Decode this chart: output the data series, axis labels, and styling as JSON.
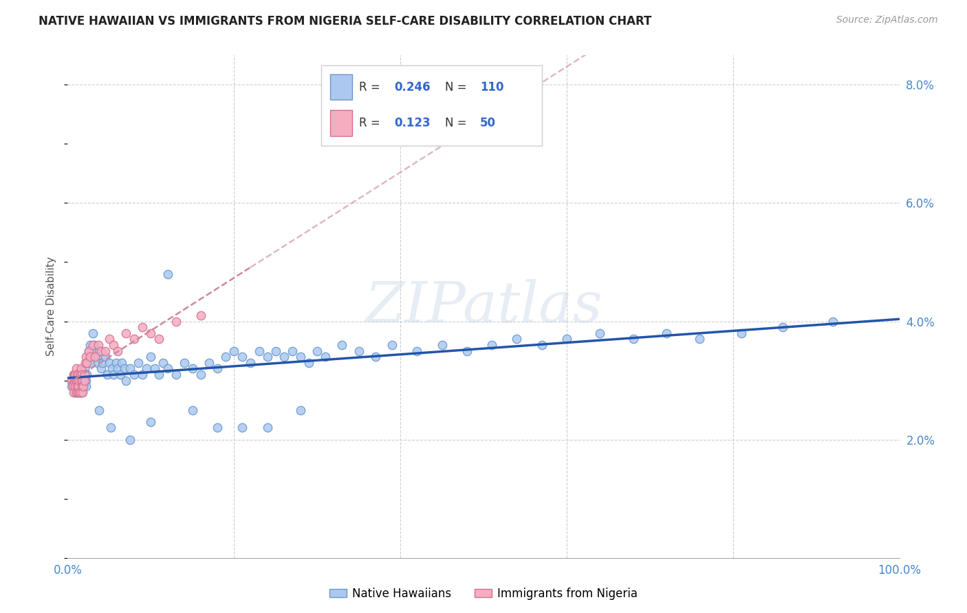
{
  "title": "NATIVE HAWAIIAN VS IMMIGRANTS FROM NIGERIA SELF-CARE DISABILITY CORRELATION CHART",
  "source": "Source: ZipAtlas.com",
  "ylabel": "Self-Care Disability",
  "xlim": [
    0,
    1.0
  ],
  "ylim": [
    0,
    0.085
  ],
  "xticks": [
    0.0,
    0.2,
    0.4,
    0.6,
    0.8,
    1.0
  ],
  "xticklabels": [
    "0.0%",
    "",
    "",
    "",
    "",
    "100.0%"
  ],
  "yticks": [
    0.0,
    0.02,
    0.04,
    0.06,
    0.08
  ],
  "yticklabels": [
    "",
    "2.0%",
    "4.0%",
    "6.0%",
    "8.0%"
  ],
  "hawaiian_color": "#adc8f0",
  "nigeria_color": "#f5adc0",
  "hawaiian_edge": "#6699cc",
  "nigeria_edge": "#d47090",
  "trend_hawaiian_color": "#2255aa",
  "trend_nigeria_color": "#cc8899",
  "R_hawaiian": 0.246,
  "N_hawaiian": 110,
  "R_nigeria": 0.123,
  "N_nigeria": 50,
  "legend_labels": [
    "Native Hawaiians",
    "Immigrants from Nigeria"
  ],
  "watermark": "ZIPatlas",
  "background_color": "#ffffff",
  "grid_color": "#cccccc",
  "hawaiian_x": [
    0.005,
    0.007,
    0.008,
    0.008,
    0.009,
    0.01,
    0.01,
    0.01,
    0.011,
    0.012,
    0.012,
    0.013,
    0.013,
    0.013,
    0.014,
    0.015,
    0.015,
    0.016,
    0.016,
    0.017,
    0.017,
    0.018,
    0.018,
    0.019,
    0.02,
    0.02,
    0.021,
    0.022,
    0.022,
    0.023,
    0.025,
    0.026,
    0.027,
    0.028,
    0.03,
    0.032,
    0.033,
    0.035,
    0.036,
    0.038,
    0.04,
    0.042,
    0.045,
    0.048,
    0.05,
    0.053,
    0.055,
    0.058,
    0.06,
    0.063,
    0.065,
    0.068,
    0.07,
    0.075,
    0.08,
    0.085,
    0.09,
    0.095,
    0.1,
    0.105,
    0.11,
    0.115,
    0.12,
    0.13,
    0.14,
    0.15,
    0.16,
    0.17,
    0.18,
    0.19,
    0.2,
    0.21,
    0.22,
    0.23,
    0.24,
    0.25,
    0.26,
    0.27,
    0.28,
    0.29,
    0.3,
    0.31,
    0.33,
    0.35,
    0.37,
    0.39,
    0.42,
    0.45,
    0.48,
    0.51,
    0.54,
    0.57,
    0.6,
    0.64,
    0.68,
    0.72,
    0.76,
    0.81,
    0.86,
    0.92,
    0.038,
    0.052,
    0.075,
    0.1,
    0.12,
    0.15,
    0.18,
    0.21,
    0.24,
    0.28
  ],
  "hawaiian_y": [
    0.029,
    0.03,
    0.029,
    0.031,
    0.028,
    0.03,
    0.028,
    0.031,
    0.029,
    0.028,
    0.031,
    0.029,
    0.031,
    0.028,
    0.03,
    0.031,
    0.029,
    0.03,
    0.028,
    0.03,
    0.028,
    0.031,
    0.029,
    0.03,
    0.032,
    0.03,
    0.031,
    0.03,
    0.029,
    0.031,
    0.035,
    0.034,
    0.036,
    0.033,
    0.038,
    0.036,
    0.035,
    0.034,
    0.033,
    0.035,
    0.032,
    0.033,
    0.034,
    0.031,
    0.033,
    0.032,
    0.031,
    0.033,
    0.032,
    0.031,
    0.033,
    0.032,
    0.03,
    0.032,
    0.031,
    0.033,
    0.031,
    0.032,
    0.034,
    0.032,
    0.031,
    0.033,
    0.032,
    0.031,
    0.033,
    0.032,
    0.031,
    0.033,
    0.032,
    0.034,
    0.035,
    0.034,
    0.033,
    0.035,
    0.034,
    0.035,
    0.034,
    0.035,
    0.034,
    0.033,
    0.035,
    0.034,
    0.036,
    0.035,
    0.034,
    0.036,
    0.035,
    0.036,
    0.035,
    0.036,
    0.037,
    0.036,
    0.037,
    0.038,
    0.037,
    0.038,
    0.037,
    0.038,
    0.039,
    0.04,
    0.025,
    0.022,
    0.02,
    0.023,
    0.048,
    0.025,
    0.022,
    0.022,
    0.022,
    0.025
  ],
  "nigeria_x": [
    0.005,
    0.006,
    0.007,
    0.007,
    0.008,
    0.008,
    0.009,
    0.009,
    0.01,
    0.01,
    0.01,
    0.011,
    0.011,
    0.012,
    0.012,
    0.013,
    0.013,
    0.014,
    0.014,
    0.015,
    0.015,
    0.016,
    0.016,
    0.017,
    0.017,
    0.018,
    0.018,
    0.019,
    0.02,
    0.02,
    0.021,
    0.022,
    0.023,
    0.025,
    0.027,
    0.03,
    0.033,
    0.037,
    0.04,
    0.045,
    0.05,
    0.055,
    0.06,
    0.07,
    0.08,
    0.09,
    0.1,
    0.11,
    0.13,
    0.16
  ],
  "nigeria_y": [
    0.03,
    0.029,
    0.031,
    0.028,
    0.03,
    0.031,
    0.029,
    0.031,
    0.028,
    0.03,
    0.032,
    0.029,
    0.031,
    0.028,
    0.03,
    0.031,
    0.029,
    0.03,
    0.028,
    0.031,
    0.028,
    0.03,
    0.032,
    0.029,
    0.031,
    0.03,
    0.028,
    0.029,
    0.031,
    0.03,
    0.033,
    0.034,
    0.033,
    0.035,
    0.034,
    0.036,
    0.034,
    0.036,
    0.035,
    0.035,
    0.037,
    0.036,
    0.035,
    0.038,
    0.037,
    0.039,
    0.038,
    0.037,
    0.04,
    0.041
  ]
}
